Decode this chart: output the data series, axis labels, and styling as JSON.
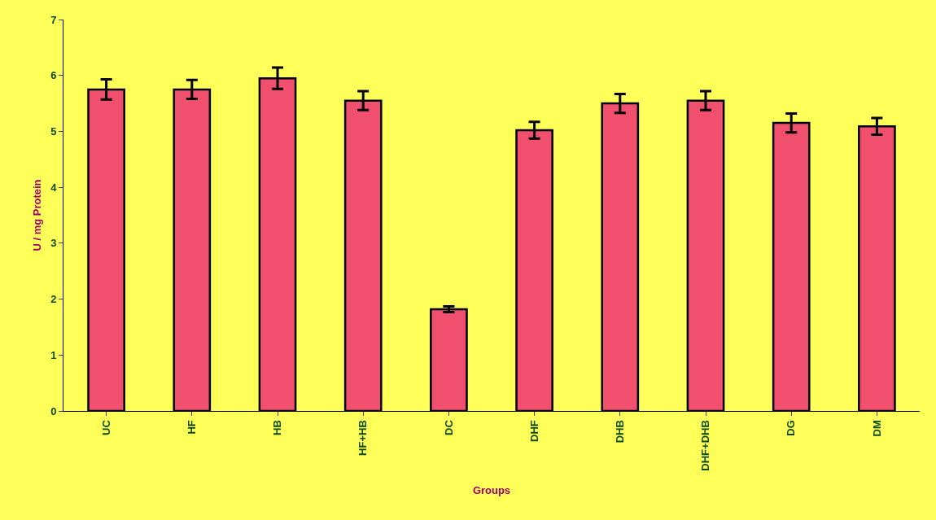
{
  "chart_data": {
    "type": "bar",
    "xlabel": "Groups",
    "ylabel": "U / mg Protein",
    "categories": [
      "UC",
      "HF",
      "HB",
      "HF+HB",
      "DC",
      "DHF",
      "DHB",
      "DHF+DHB",
      "DG",
      "DM"
    ],
    "values": [
      5.75,
      5.75,
      5.95,
      5.55,
      1.82,
      5.02,
      5.5,
      5.55,
      5.15,
      5.09
    ],
    "errors": [
      0.18,
      0.17,
      0.19,
      0.17,
      0.05,
      0.15,
      0.17,
      0.17,
      0.17,
      0.15
    ],
    "color": "#f0506e",
    "ylim": [
      0,
      7
    ],
    "yticks": [
      0,
      1,
      2,
      3,
      4,
      5,
      6,
      7
    ],
    "grid": false
  }
}
